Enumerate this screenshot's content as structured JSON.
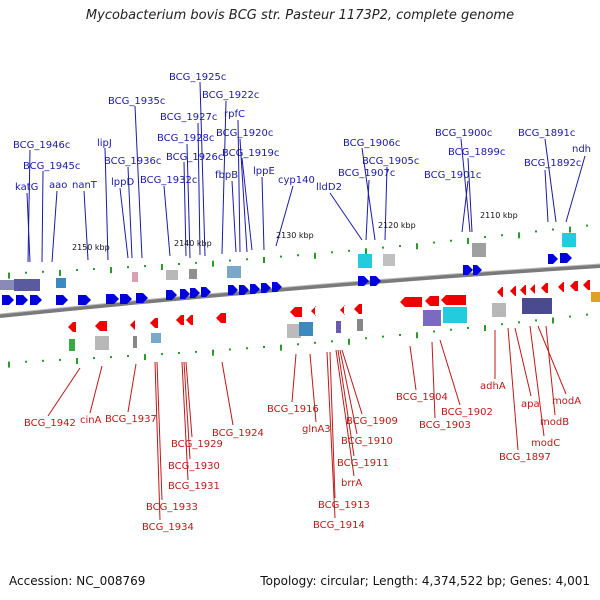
{
  "title": "Mycobacterium bovis BCG str. Pasteur 1173P2, complete genome",
  "footer": {
    "accession": "Accession: NC_008769",
    "summary": "Topology: circular; Length: 4,374,522 bp; Genes: 4,001"
  },
  "scale_labels": [
    "2150 kbp",
    "2140 kbp",
    "2130 kbp",
    "2120 kbp",
    "2110 kbp"
  ],
  "top_labels": [
    "BCG_1925c",
    "BCG_1935c",
    "BCG_1922c",
    "rpfC",
    "BCG_1927c",
    "BCG_1946c",
    "lipJ",
    "BCG_1928c",
    "BCG_1920c",
    "BCG_1926c",
    "BCG_1919c",
    "BCG_1945c",
    "BCG_1936c",
    "BCG_1906c",
    "BCG_1900c",
    "BCG_1891c",
    "BCG_1899c",
    "BCG_1905c",
    "ndh",
    "BCG_1892c",
    "lppD",
    "BCG_1932c",
    "fbpB",
    "lppE",
    "cyp140",
    "katG",
    "aao",
    "nanT",
    "BCG_1907c",
    "lldD2",
    "BCG_1901c"
  ],
  "bottom_labels": [
    "BCG_1942",
    "cinA",
    "BCG_1937",
    "BCG_1924",
    "BCG_1929",
    "BCG_1930",
    "BCG_1931",
    "BCG_1933",
    "BCG_1934",
    "BCG_1916",
    "glnA3",
    "BCG_1909",
    "BCG_1910",
    "BCG_1911",
    "brrA",
    "BCG_1913",
    "BCG_1914",
    "BCG_1904",
    "BCG_1902",
    "BCG_1903",
    "adhA",
    "apa",
    "modA",
    "modB",
    "modC",
    "BCG_1897"
  ],
  "colors": {
    "forward_strand": "#0000dd",
    "reverse_strand": "#ee0000",
    "backbone": "#777777",
    "label_top": "#1a1aa8",
    "label_bottom": "#c01818",
    "tick": "#2a9a2a"
  }
}
